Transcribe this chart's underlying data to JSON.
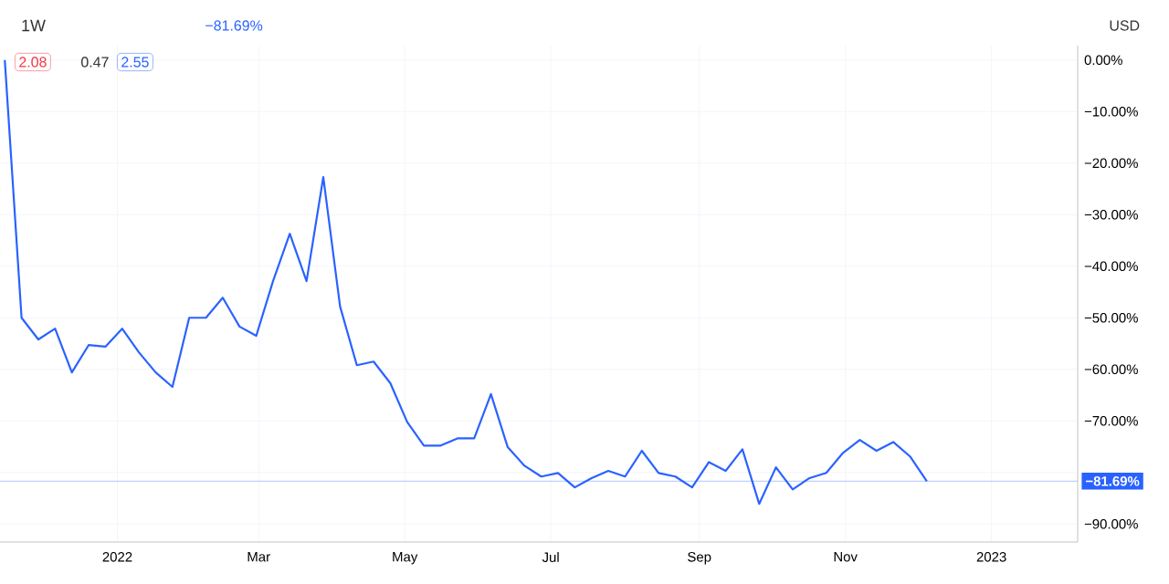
{
  "chart_data": {
    "type": "line",
    "title": "1W",
    "annotations": [
      "2.08",
      "0.47",
      "2.55",
      "−81.69%",
      "USD"
    ],
    "x": [
      "2021-11-15",
      "2021-11-22",
      "2021-11-29",
      "2021-12-06",
      "2021-12-13",
      "2021-12-20",
      "2021-12-27",
      "2022-01-03",
      "2022-01-10",
      "2022-01-17",
      "2022-01-24",
      "2022-01-31",
      "2022-02-07",
      "2022-02-14",
      "2022-02-21",
      "2022-02-28",
      "2022-03-07",
      "2022-03-14",
      "2022-03-21",
      "2022-03-28",
      "2022-04-04",
      "2022-04-11",
      "2022-04-18",
      "2022-04-25",
      "2022-05-02",
      "2022-05-09",
      "2022-05-16",
      "2022-05-23",
      "2022-05-30",
      "2022-06-06",
      "2022-06-13",
      "2022-06-20",
      "2022-06-27",
      "2022-07-04",
      "2022-07-11",
      "2022-07-18",
      "2022-07-25",
      "2022-08-01",
      "2022-08-08",
      "2022-08-15",
      "2022-08-22",
      "2022-08-29",
      "2022-09-05",
      "2022-09-12",
      "2022-09-19",
      "2022-09-26",
      "2022-10-03",
      "2022-10-10",
      "2022-10-17",
      "2022-10-24",
      "2022-10-31",
      "2022-11-07",
      "2022-11-14",
      "2022-11-21",
      "2022-11-28",
      "2022-12-05"
    ],
    "values": [
      0,
      -50.0,
      -54.2,
      -52.1,
      -60.6,
      -55.3,
      -55.6,
      -52.1,
      -56.7,
      -60.6,
      -63.4,
      -50.0,
      -50.0,
      -46.1,
      -51.7,
      -53.5,
      -42.9,
      -33.7,
      -42.9,
      -22.7,
      -47.8,
      -59.2,
      -58.5,
      -62.7,
      -70.2,
      -74.8,
      -74.8,
      -73.4,
      -73.4,
      -64.8,
      -75.1,
      -78.7,
      -80.8,
      -80.1,
      -82.9,
      -81.1,
      -79.7,
      -80.8,
      -75.8,
      -80.1,
      -80.8,
      -82.9,
      -78.0,
      -79.7,
      -75.5,
      -86.1,
      -79.0,
      -83.3,
      -81.1,
      -80.1,
      -76.2,
      -73.7,
      -75.8,
      -74.1,
      -76.9,
      -81.69
    ],
    "color": "#2962ff",
    "xlim": [
      "2021-11-13",
      "2023-02-06"
    ],
    "ylim": [
      -93.5,
      2.8
    ],
    "xticks": [
      {
        "value": "2022-01-01",
        "label": "2022"
      },
      {
        "value": "2022-03-01",
        "label": "Mar"
      },
      {
        "value": "2022-05-01",
        "label": "May"
      },
      {
        "value": "2022-07-01",
        "label": "Jul"
      },
      {
        "value": "2022-09-01",
        "label": "Sep"
      },
      {
        "value": "2022-11-01",
        "label": "Nov"
      },
      {
        "value": "2023-01-01",
        "label": "2023"
      }
    ],
    "yticks": [
      {
        "value": 0,
        "label": "0.00%"
      },
      {
        "value": -10,
        "label": "−10.00%"
      },
      {
        "value": -20,
        "label": "−20.00%"
      },
      {
        "value": -30,
        "label": "−30.00%"
      },
      {
        "value": -40,
        "label": "−40.00%"
      },
      {
        "value": -50,
        "label": "−50.00%"
      },
      {
        "value": -60,
        "label": "−60.00%"
      },
      {
        "value": -70,
        "label": "−70.00%"
      },
      {
        "value": -80,
        "label": null
      },
      {
        "value": -90,
        "label": "−90.00%"
      }
    ],
    "grid": true,
    "ref_lines": [
      {
        "axis": "y",
        "value": -81.69,
        "label": "−81.69%",
        "color": "#2962ff"
      }
    ]
  }
}
